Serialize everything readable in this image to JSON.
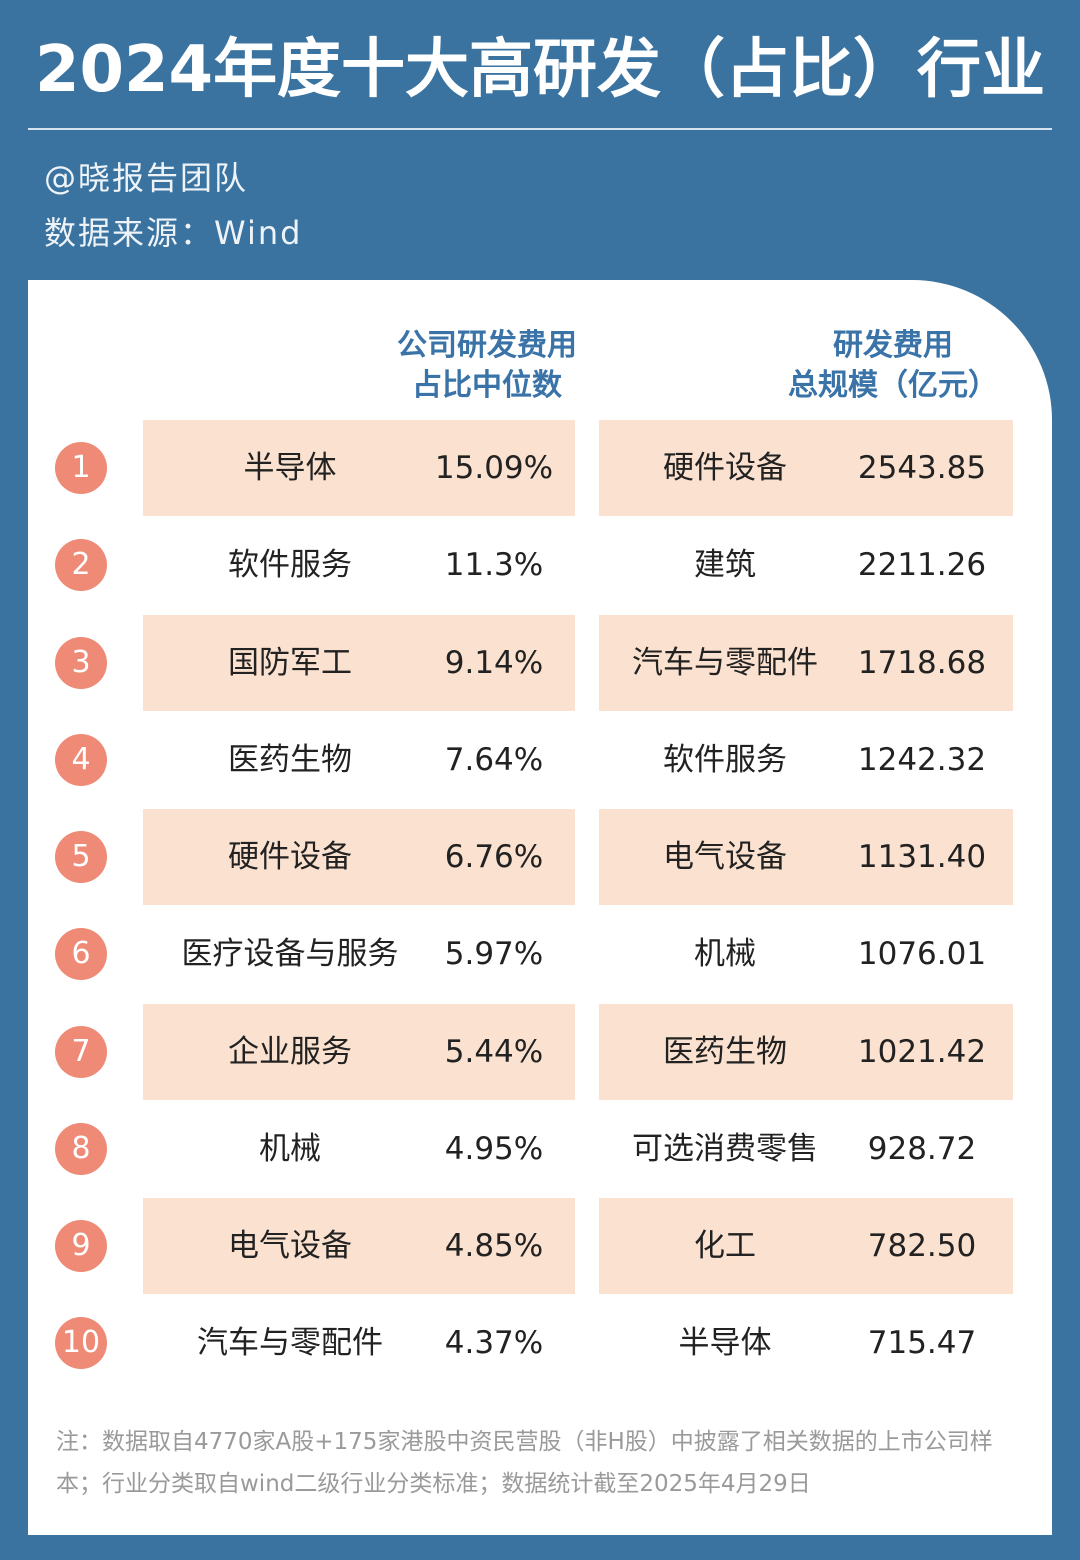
{
  "header": {
    "title": "2024年度十大高研发（占比）行业",
    "author": "@晓报告团队",
    "source": "数据来源：Wind"
  },
  "table": {
    "headers": [
      [
        "公司研发费用",
        "占比中位数"
      ],
      [
        "研发费用",
        "总规模（亿元）"
      ]
    ],
    "rows": [
      [
        "1",
        "半导体",
        "15.09%",
        "硬件设备",
        "2543.85"
      ],
      [
        "2",
        "软件服务",
        "11.3%",
        "建筑",
        "2211.26"
      ],
      [
        "3",
        "国防军工",
        "9.14%",
        "汽车与零配件",
        "1718.68"
      ],
      [
        "4",
        "医药生物",
        "7.64%",
        "软件服务",
        "1242.32"
      ],
      [
        "5",
        "硬件设备",
        "6.76%",
        "电气设备",
        "1131.40"
      ],
      [
        "6",
        "医疗设备与服务",
        "5.97%",
        "机械",
        "1076.01"
      ],
      [
        "7",
        "企业服务",
        "5.44%",
        "医药生物",
        "1021.42"
      ],
      [
        "8",
        "机械",
        "4.95%",
        "可选消费零售",
        "928.72"
      ],
      [
        "9",
        "电气设备",
        "4.85%",
        "化工",
        "782.50"
      ],
      [
        "10",
        "汽车与零配件",
        "4.37%",
        "半导体",
        "715.47"
      ]
    ]
  },
  "note": "注：数据取自4770家A股+175家港股中资民营股（非H股）中披露了相关数据的上市公司样本；行业分类取自wind二级行业分类标准；数据统计截至2025年4月29日"
}
